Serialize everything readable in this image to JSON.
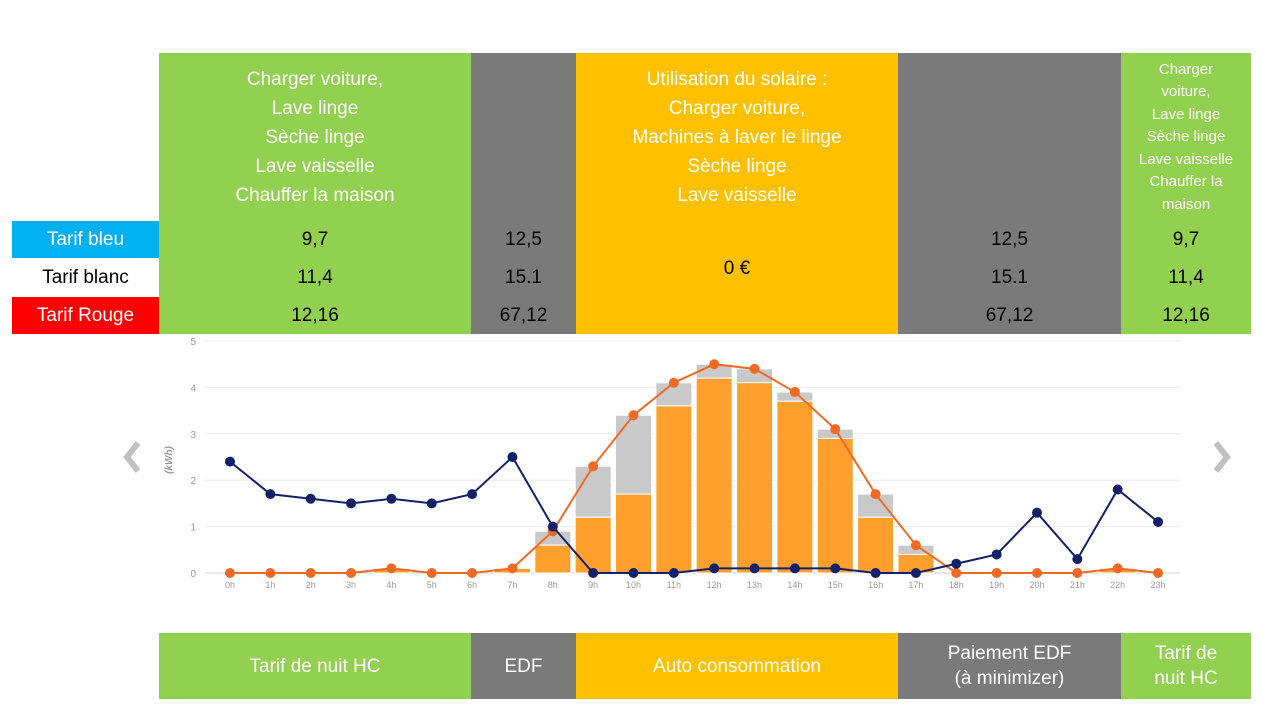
{
  "header_blocks": [
    {
      "lines": [
        "Charger voiture,",
        "Lave linge",
        "Sèche linge",
        "Lave vaisselle",
        "Chauffer la maison"
      ]
    },
    {
      "lines": []
    },
    {
      "lines": [
        "Utilisation du solaire :",
        "Charger voiture,",
        "Machines à laver le linge",
        "Sèche linge",
        "Lave vaisselle"
      ]
    },
    {
      "lines": []
    },
    {
      "lines": [
        "Charger",
        "voiture,",
        "Lave linge",
        "Sèche linge",
        "Lave vaisselle",
        "Chauffer la",
        "maison"
      ]
    }
  ],
  "tarifs": {
    "labels": [
      "Tarif bleu",
      "Tarif blanc",
      "Tarif Rouge"
    ],
    "label_colors": [
      "#00b0f0",
      "#ffffff",
      "#ff0000"
    ],
    "night_hc": [
      "9,7",
      "11,4",
      "12,16"
    ],
    "edf_morning": [
      "12,5",
      "15.1",
      "67,12"
    ],
    "solar": "0 €",
    "edf_evening": [
      "12,5",
      "15.1",
      "67,12"
    ],
    "night_hc_end": [
      "9,7",
      "11,4",
      "12,16"
    ]
  },
  "footer": {
    "night": "Tarif de nuit HC",
    "edf": "EDF",
    "auto": "Auto consommation",
    "payment_line1": "Paiement EDF",
    "payment_line2": "(à minimizer)",
    "night_end_line1": "Tarif de",
    "night_end_line2": "nuit HC"
  },
  "colors": {
    "green": "#92d050",
    "gray": "#7a7a7a",
    "orange_block": "#ffc000",
    "bar_orange": "#ff9f2e",
    "bar_gray": "#c9c9c9",
    "line_orange": "#f06a25",
    "line_navy": "#12206a"
  },
  "icons": {
    "left": "chevron-left-icon",
    "right": "chevron-right-icon"
  },
  "chart_data": {
    "type": "bar",
    "ylabel": "(kWh)",
    "ylim": [
      0,
      5
    ],
    "yticks": [
      "0",
      "1",
      "2",
      "3",
      "4",
      "5"
    ],
    "categories": [
      "0h",
      "1h",
      "2h",
      "3h",
      "4h",
      "5h",
      "6h",
      "7h",
      "8h",
      "9h",
      "10h",
      "11h",
      "12h",
      "13h",
      "14h",
      "15h",
      "16h",
      "17h",
      "18h",
      "19h",
      "20h",
      "21h",
      "22h",
      "23h"
    ],
    "series": [
      {
        "kind": "bar",
        "values": [
          0,
          0,
          0,
          0,
          0.1,
          0,
          0,
          0.1,
          0.6,
          1.2,
          1.7,
          3.6,
          4.2,
          4.1,
          3.7,
          2.9,
          1.2,
          0.4,
          0,
          0,
          0,
          0,
          0.1,
          0
        ]
      },
      {
        "kind": "bar",
        "values": [
          0,
          0,
          0,
          0,
          0.1,
          0,
          0,
          0.1,
          0.9,
          2.3,
          3.4,
          4.1,
          4.5,
          4.4,
          3.9,
          3.1,
          1.7,
          0.6,
          0,
          0,
          0,
          0,
          0.1,
          0
        ]
      },
      {
        "kind": "line",
        "values": [
          0,
          0,
          0,
          0,
          0.1,
          0,
          0,
          0.1,
          0.9,
          2.3,
          3.4,
          4.1,
          4.5,
          4.4,
          3.9,
          3.1,
          1.7,
          0.6,
          0,
          0,
          0,
          0,
          0.1,
          0
        ]
      },
      {
        "kind": "line",
        "values": [
          2.4,
          1.7,
          1.6,
          1.5,
          1.6,
          1.5,
          1.7,
          2.5,
          1.0,
          0,
          0,
          0,
          0.1,
          0.1,
          0.1,
          0.1,
          0,
          0,
          0.2,
          0.4,
          1.3,
          0.3,
          1.8,
          1.1
        ]
      }
    ],
    "grid": true
  }
}
